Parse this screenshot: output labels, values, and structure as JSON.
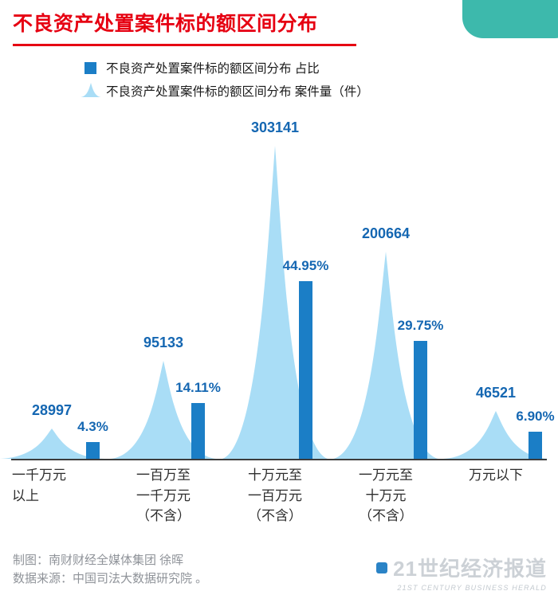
{
  "header": {
    "title": "不良资产处置案件标的额区间分布"
  },
  "legend": {
    "items": [
      {
        "icon": "bar-swatch",
        "label": "不良资产处置案件标的额区间分布 占比"
      },
      {
        "icon": "peak-swatch",
        "label": "不良资产处置案件标的额区间分布 案件量（件）"
      }
    ]
  },
  "chart_data": {
    "type": "combo: area-spike (case count) + bar (percent share)",
    "title": "不良资产处置案件标的额区间分布",
    "categories": [
      "一千万元以上",
      "一百万至一千万元（不含）",
      "十万元至一百万元（不含）",
      "一万元至十万元（不含）",
      "万元以下"
    ],
    "category_lines": [
      [
        "一千万元",
        "以上"
      ],
      [
        "一百万至",
        "一千万元",
        "（不含）"
      ],
      [
        "十万元至",
        "一百万元",
        "（不含）"
      ],
      [
        "一万元至",
        "十万元",
        "（不含）"
      ],
      [
        "万元以下"
      ]
    ],
    "series": [
      {
        "name": "不良资产处置案件标的额区间分布 案件量（件）",
        "type": "area-spike",
        "values": [
          28997,
          95133,
          303141,
          200664,
          46521
        ],
        "labels": [
          "28997",
          "95133",
          "303141",
          "200664",
          "46521"
        ]
      },
      {
        "name": "不良资产处置案件标的额区间分布 占比",
        "type": "bar",
        "unit": "%",
        "values": [
          4.3,
          14.11,
          44.95,
          29.75,
          6.9
        ],
        "labels": [
          "4.3%",
          "14.11%",
          "44.95%",
          "29.75%",
          "6.90%"
        ]
      }
    ],
    "legend_position": "top",
    "grid": false,
    "baseline_axis": true
  },
  "footer": {
    "credit": "制图：南财财经全媒体集团 徐晖",
    "source": "数据来源：中国司法大数据研究院 。"
  },
  "logo": {
    "name": "21世纪经济报道",
    "tagline": "21ST CENTURY BUSINESS HERALD"
  },
  "colors": {
    "title_red": "#e60012",
    "accent_teal": "#3db9ac",
    "bar_blue": "#1b7ec6",
    "value_label_blue": "#1567b2",
    "peak_light_blue": "#a9ddf6",
    "axis_line": "#3c3c3c",
    "axis_text": "#2e2e2e",
    "footer_gray": "#8f9399",
    "logo_gray": "#ccd1d6"
  }
}
